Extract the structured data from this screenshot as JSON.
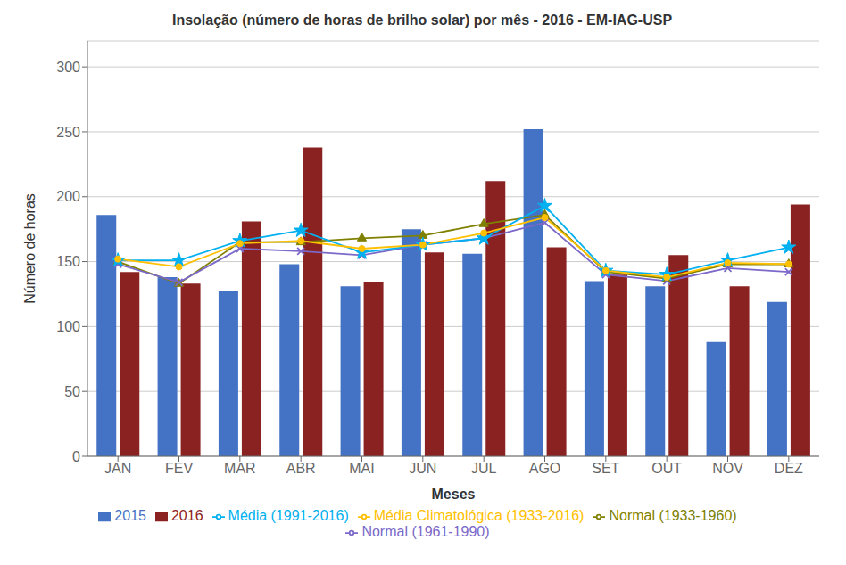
{
  "chart_data": {
    "type": "bar",
    "title": "Insolação (número de horas de brilho solar) por mês - 2016 - EM-IAG-USP",
    "x_label": "Meses",
    "y_label": "Número de horas",
    "categories": [
      "JAN",
      "FEV",
      "MAR",
      "ABR",
      "MAI",
      "JUN",
      "JUL",
      "AGO",
      "SET",
      "OUT",
      "NOV",
      "DEZ"
    ],
    "series": [
      {
        "name": "2015",
        "type": "bar",
        "color": "#4472C4",
        "values": [
          186,
          138,
          127,
          148,
          131,
          175,
          156,
          252,
          135,
          131,
          88,
          119
        ]
      },
      {
        "name": "2016",
        "type": "bar",
        "color": "#8B2222",
        "values": [
          142,
          133,
          181,
          238,
          134,
          157,
          212,
          161,
          140,
          155,
          131,
          194
        ]
      },
      {
        "name": "Normal (1933-1960)",
        "type": "line",
        "color": "#808000",
        "marker": "triangle",
        "values": [
          150,
          133,
          165,
          165,
          168,
          170,
          179,
          186,
          142,
          137,
          148,
          148
        ]
      },
      {
        "name": "Normal (1961-1990)",
        "type": "line",
        "color": "#7B68C8",
        "marker": "x",
        "values": [
          148,
          134,
          160,
          158,
          155,
          163,
          168,
          180,
          140,
          135,
          145,
          142
        ]
      },
      {
        "name": "Média (1991-2016)",
        "type": "line",
        "color": "#00B0F0",
        "marker": "star",
        "values": [
          151,
          151,
          166,
          174,
          157,
          163,
          168,
          193,
          143,
          140,
          151,
          161
        ]
      },
      {
        "name": "Média Climatológica (1933-2016)",
        "type": "line",
        "color": "#FFC000",
        "marker": "circle",
        "values": [
          152,
          146,
          164,
          166,
          160,
          163,
          172,
          184,
          143,
          138,
          149,
          148
        ]
      }
    ],
    "ylim": [
      0,
      320
    ],
    "yticks": [
      0,
      50,
      100,
      150,
      200,
      250,
      300
    ],
    "grid": true,
    "legend": "bottom"
  }
}
